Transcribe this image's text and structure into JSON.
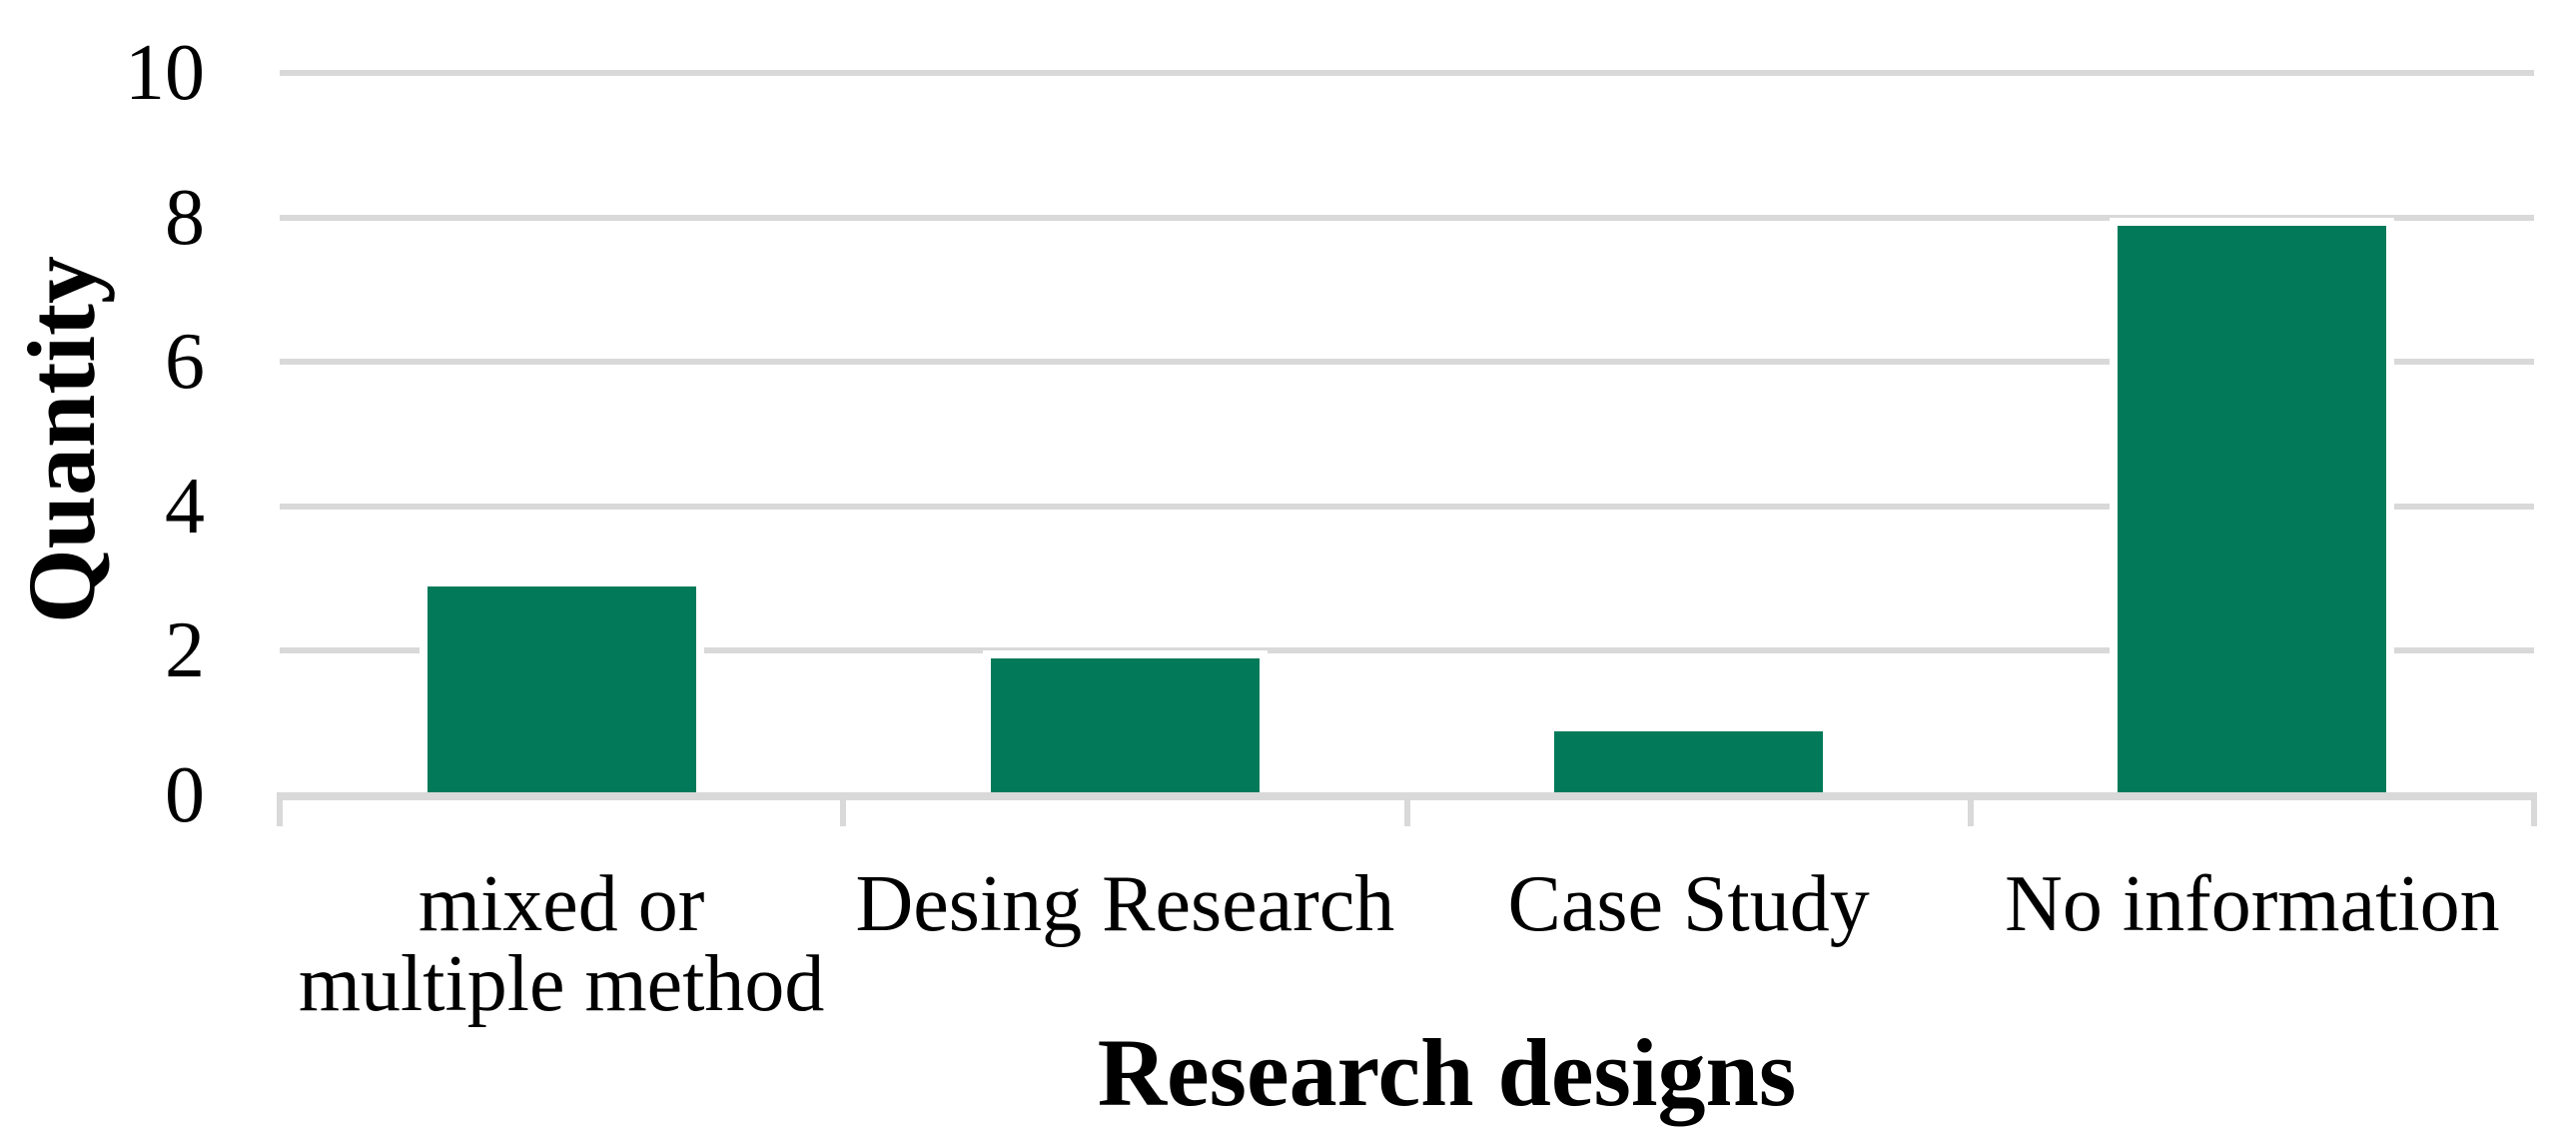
{
  "chart_data": {
    "type": "bar",
    "title": "",
    "xlabel": "Research designs",
    "ylabel": "Quantity",
    "categories": [
      "mixed or multiple method",
      "Desing Research",
      "Case Study",
      "No information"
    ],
    "category_label_lines": [
      [
        "mixed or",
        "multiple method"
      ],
      [
        "Desing Research"
      ],
      [
        "Case Study"
      ],
      [
        "No information"
      ]
    ],
    "values": [
      3,
      2,
      1,
      8
    ],
    "series": [
      {
        "name": "Quantity",
        "values": [
          3,
          2,
          1,
          8
        ]
      }
    ],
    "ylim": [
      0,
      10
    ],
    "yticks": [
      0,
      2,
      4,
      6,
      8,
      10
    ],
    "grid": "horizontal",
    "legend_position": "none",
    "bar_color": "#027a59",
    "bar_border_color": "#ffffff",
    "gridline_color": "#d9d9d9",
    "axis_line_color": "#d9d9d9",
    "text_color": "#000000",
    "background_color": "#ffffff"
  }
}
